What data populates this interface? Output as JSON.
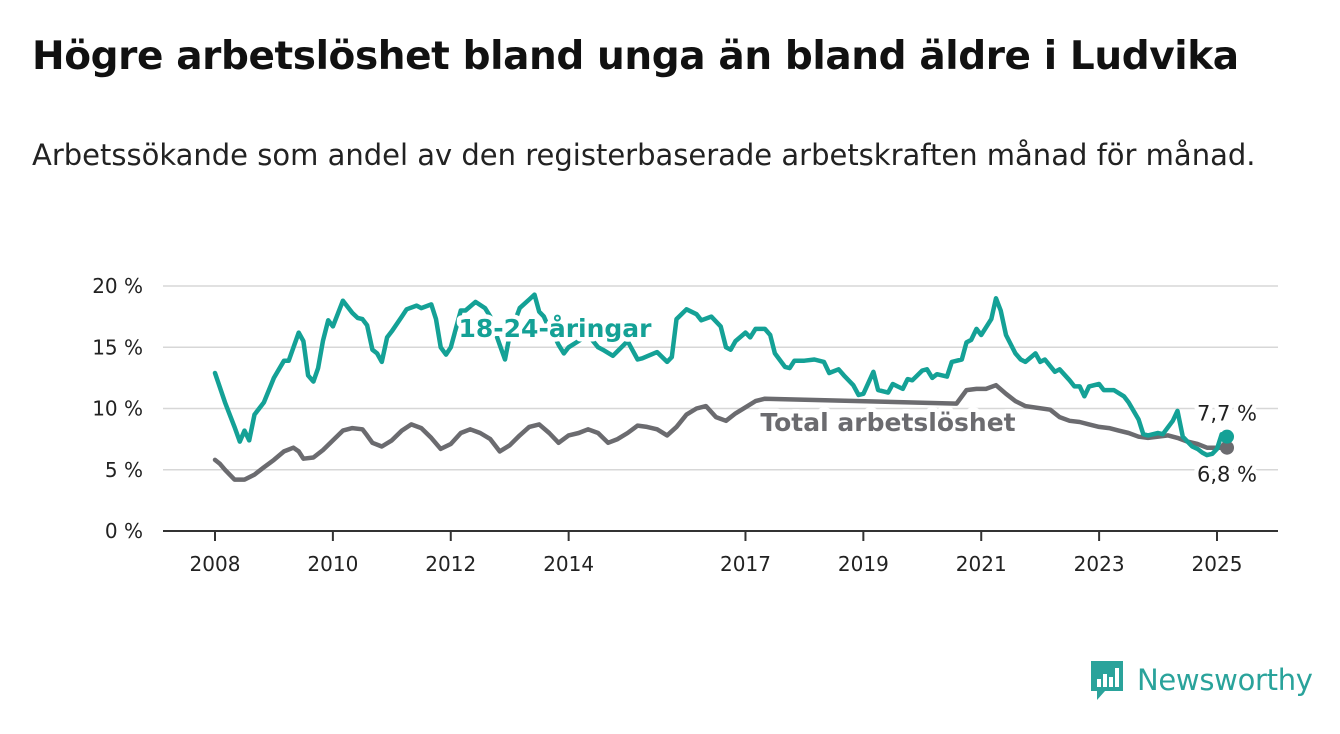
{
  "title": "Högre arbetslöshet bland unga än bland äldre i Ludvika",
  "subtitle": "Arbetssökande som andel av den registerbaserade arbetskraften månad för månad.",
  "brand": {
    "name": "Newsworthy",
    "color": "#2aa39b",
    "icon": "newsworthy-chart-bubble-icon"
  },
  "chart_data": {
    "type": "line",
    "title": "Högre arbetslöshet bland unga än bland äldre i Ludvika",
    "xlabel": "",
    "ylabel": "",
    "ylim": [
      0,
      20
    ],
    "xlim": [
      2008.0,
      2025.25
    ],
    "y_ticks": [
      0,
      5,
      10,
      15,
      20
    ],
    "y_tick_labels": [
      "0 %",
      "5 %",
      "10 %",
      "15 %",
      "20 %"
    ],
    "x_ticks": [
      2008,
      2010,
      2012,
      2014,
      2017,
      2019,
      2021,
      2023,
      2025
    ],
    "x_tick_labels": [
      "2008",
      "2010",
      "2012",
      "2014",
      "2017",
      "2019",
      "2021",
      "2023",
      "2025"
    ],
    "grid": "horizontal",
    "legend": "direct labels",
    "series": [
      {
        "name": "18-24-åringar",
        "color": "#14a196",
        "end_label": "7,7 %",
        "points": [
          [
            2008.0,
            12.9
          ],
          [
            2008.17,
            10.5
          ],
          [
            2008.33,
            8.5
          ],
          [
            2008.42,
            7.3
          ],
          [
            2008.5,
            8.2
          ],
          [
            2008.58,
            7.4
          ],
          [
            2008.67,
            9.5
          ],
          [
            2008.83,
            10.5
          ],
          [
            2009.0,
            12.5
          ],
          [
            2009.17,
            13.9
          ],
          [
            2009.25,
            13.9
          ],
          [
            2009.42,
            16.2
          ],
          [
            2009.5,
            15.5
          ],
          [
            2009.58,
            12.7
          ],
          [
            2009.67,
            12.2
          ],
          [
            2009.75,
            13.3
          ],
          [
            2009.83,
            15.5
          ],
          [
            2009.92,
            17.2
          ],
          [
            2010.0,
            16.7
          ],
          [
            2010.17,
            18.8
          ],
          [
            2010.33,
            17.8
          ],
          [
            2010.42,
            17.4
          ],
          [
            2010.5,
            17.3
          ],
          [
            2010.58,
            16.8
          ],
          [
            2010.67,
            14.8
          ],
          [
            2010.75,
            14.5
          ],
          [
            2010.83,
            13.8
          ],
          [
            2010.92,
            15.8
          ],
          [
            2011.0,
            16.3
          ],
          [
            2011.17,
            17.5
          ],
          [
            2011.25,
            18.1
          ],
          [
            2011.42,
            18.4
          ],
          [
            2011.5,
            18.2
          ],
          [
            2011.67,
            18.5
          ],
          [
            2011.75,
            17.3
          ],
          [
            2011.83,
            15.0
          ],
          [
            2011.92,
            14.4
          ],
          [
            2012.0,
            15.0
          ],
          [
            2012.17,
            18.0
          ],
          [
            2012.25,
            18.0
          ],
          [
            2012.42,
            18.7
          ],
          [
            2012.58,
            18.2
          ],
          [
            2012.67,
            17.5
          ],
          [
            2012.75,
            16.3
          ],
          [
            2012.83,
            15.2
          ],
          [
            2012.92,
            14.0
          ],
          [
            2013.0,
            16.0
          ],
          [
            2013.17,
            18.2
          ],
          [
            2013.33,
            18.9
          ],
          [
            2013.42,
            19.3
          ],
          [
            2013.5,
            17.9
          ],
          [
            2013.58,
            17.5
          ],
          [
            2013.67,
            16.5
          ],
          [
            2013.75,
            16.0
          ],
          [
            2013.83,
            15.2
          ],
          [
            2013.92,
            14.5
          ],
          [
            2014.0,
            15.0
          ],
          [
            2014.33,
            16.0
          ],
          [
            2014.5,
            15.0
          ],
          [
            2014.58,
            14.8
          ],
          [
            2014.75,
            14.3
          ],
          [
            2015.0,
            15.5
          ],
          [
            2015.17,
            14.0
          ],
          [
            2015.25,
            14.1
          ],
          [
            2015.5,
            14.6
          ],
          [
            2015.67,
            13.8
          ],
          [
            2015.75,
            14.2
          ],
          [
            2015.83,
            17.3
          ],
          [
            2016.0,
            18.1
          ],
          [
            2016.17,
            17.7
          ],
          [
            2016.25,
            17.2
          ],
          [
            2016.42,
            17.5
          ],
          [
            2016.58,
            16.7
          ],
          [
            2016.67,
            15.0
          ],
          [
            2016.75,
            14.8
          ],
          [
            2016.83,
            15.5
          ],
          [
            2017.0,
            16.2
          ],
          [
            2017.08,
            15.8
          ],
          [
            2017.17,
            16.5
          ],
          [
            2017.33,
            16.5
          ],
          [
            2017.42,
            16.0
          ],
          [
            2017.5,
            14.5
          ],
          [
            2017.67,
            13.4
          ],
          [
            2017.75,
            13.3
          ],
          [
            2017.83,
            13.9
          ],
          [
            2018.0,
            13.9
          ],
          [
            2018.17,
            14.0
          ],
          [
            2018.33,
            13.8
          ],
          [
            2018.42,
            12.9
          ],
          [
            2018.58,
            13.2
          ],
          [
            2018.67,
            12.7
          ],
          [
            2018.83,
            11.9
          ],
          [
            2018.92,
            11.1
          ],
          [
            2019.0,
            11.2
          ],
          [
            2019.17,
            13.0
          ],
          [
            2019.25,
            11.5
          ],
          [
            2019.42,
            11.3
          ],
          [
            2019.5,
            12.0
          ],
          [
            2019.58,
            11.8
          ],
          [
            2019.67,
            11.6
          ],
          [
            2019.75,
            12.4
          ],
          [
            2019.83,
            12.3
          ],
          [
            2020.0,
            13.1
          ],
          [
            2020.08,
            13.2
          ],
          [
            2020.17,
            12.5
          ],
          [
            2020.25,
            12.8
          ],
          [
            2020.42,
            12.6
          ],
          [
            2020.5,
            13.8
          ],
          [
            2020.67,
            14.0
          ],
          [
            2020.75,
            15.4
          ],
          [
            2020.83,
            15.6
          ],
          [
            2020.92,
            16.5
          ],
          [
            2021.0,
            16.0
          ],
          [
            2021.17,
            17.3
          ],
          [
            2021.25,
            19.0
          ],
          [
            2021.33,
            18.0
          ],
          [
            2021.42,
            16.0
          ],
          [
            2021.58,
            14.5
          ],
          [
            2021.67,
            14.0
          ],
          [
            2021.75,
            13.8
          ],
          [
            2021.92,
            14.5
          ],
          [
            2022.0,
            13.8
          ],
          [
            2022.08,
            14.0
          ],
          [
            2022.25,
            13.0
          ],
          [
            2022.33,
            13.2
          ],
          [
            2022.5,
            12.3
          ],
          [
            2022.58,
            11.8
          ],
          [
            2022.67,
            11.8
          ],
          [
            2022.75,
            11.0
          ],
          [
            2022.83,
            11.8
          ],
          [
            2023.0,
            12.0
          ],
          [
            2023.08,
            11.5
          ],
          [
            2023.25,
            11.5
          ],
          [
            2023.42,
            11.0
          ],
          [
            2023.5,
            10.5
          ],
          [
            2023.67,
            9.1
          ],
          [
            2023.75,
            7.9
          ],
          [
            2023.83,
            7.8
          ],
          [
            2024.0,
            8.0
          ],
          [
            2024.08,
            7.9
          ],
          [
            2024.25,
            9.0
          ],
          [
            2024.33,
            9.8
          ],
          [
            2024.42,
            7.7
          ],
          [
            2024.58,
            6.9
          ],
          [
            2024.67,
            6.7
          ],
          [
            2024.75,
            6.4
          ],
          [
            2024.83,
            6.2
          ],
          [
            2024.92,
            6.3
          ],
          [
            2025.0,
            6.7
          ],
          [
            2025.08,
            7.9
          ],
          [
            2025.17,
            7.7
          ]
        ]
      },
      {
        "name": "Total arbetslöshet",
        "color": "#6b6b6f",
        "end_label": "6,8 %",
        "points": [
          [
            2008.0,
            5.8
          ],
          [
            2008.08,
            5.5
          ],
          [
            2008.17,
            5.0
          ],
          [
            2008.33,
            4.2
          ],
          [
            2008.5,
            4.2
          ],
          [
            2008.67,
            4.6
          ],
          [
            2008.83,
            5.2
          ],
          [
            2009.0,
            5.8
          ],
          [
            2009.17,
            6.5
          ],
          [
            2009.33,
            6.8
          ],
          [
            2009.42,
            6.5
          ],
          [
            2009.5,
            5.9
          ],
          [
            2009.67,
            6.0
          ],
          [
            2009.83,
            6.6
          ],
          [
            2010.0,
            7.4
          ],
          [
            2010.17,
            8.2
          ],
          [
            2010.33,
            8.4
          ],
          [
            2010.5,
            8.3
          ],
          [
            2010.58,
            7.8
          ],
          [
            2010.67,
            7.2
          ],
          [
            2010.83,
            6.9
          ],
          [
            2011.0,
            7.4
          ],
          [
            2011.17,
            8.2
          ],
          [
            2011.33,
            8.7
          ],
          [
            2011.5,
            8.4
          ],
          [
            2011.67,
            7.6
          ],
          [
            2011.83,
            6.7
          ],
          [
            2012.0,
            7.1
          ],
          [
            2012.17,
            8.0
          ],
          [
            2012.33,
            8.3
          ],
          [
            2012.5,
            8.0
          ],
          [
            2012.67,
            7.5
          ],
          [
            2012.83,
            6.5
          ],
          [
            2013.0,
            7.0
          ],
          [
            2013.17,
            7.8
          ],
          [
            2013.33,
            8.5
          ],
          [
            2013.5,
            8.7
          ],
          [
            2013.67,
            8.0
          ],
          [
            2013.83,
            7.2
          ],
          [
            2014.0,
            7.8
          ],
          [
            2014.17,
            8.0
          ],
          [
            2014.33,
            8.3
          ],
          [
            2014.5,
            8.0
          ],
          [
            2014.67,
            7.2
          ],
          [
            2014.83,
            7.5
          ],
          [
            2015.0,
            8.0
          ],
          [
            2015.17,
            8.6
          ],
          [
            2015.33,
            8.5
          ],
          [
            2015.5,
            8.3
          ],
          [
            2015.67,
            7.8
          ],
          [
            2015.83,
            8.5
          ],
          [
            2016.0,
            9.5
          ],
          [
            2016.17,
            10.0
          ],
          [
            2016.33,
            10.2
          ],
          [
            2016.5,
            9.3
          ],
          [
            2016.67,
            9.0
          ],
          [
            2016.83,
            9.6
          ],
          [
            2017.0,
            10.1
          ],
          [
            2017.17,
            10.6
          ],
          [
            2017.33,
            10.8
          ],
          [
            2020.58,
            10.4
          ],
          [
            2020.75,
            11.5
          ],
          [
            2020.92,
            11.6
          ],
          [
            2021.08,
            11.6
          ],
          [
            2021.25,
            11.9
          ],
          [
            2021.42,
            11.2
          ],
          [
            2021.58,
            10.6
          ],
          [
            2021.75,
            10.2
          ],
          [
            2022.17,
            9.9
          ],
          [
            2022.33,
            9.3
          ],
          [
            2022.5,
            9.0
          ],
          [
            2022.67,
            8.9
          ],
          [
            2022.83,
            8.7
          ],
          [
            2023.0,
            8.5
          ],
          [
            2023.17,
            8.4
          ],
          [
            2023.33,
            8.2
          ],
          [
            2023.5,
            8.0
          ],
          [
            2023.67,
            7.7
          ],
          [
            2023.83,
            7.6
          ],
          [
            2024.0,
            7.7
          ],
          [
            2024.17,
            7.8
          ],
          [
            2024.33,
            7.6
          ],
          [
            2024.5,
            7.3
          ],
          [
            2024.67,
            7.1
          ],
          [
            2024.83,
            6.8
          ],
          [
            2025.0,
            6.8
          ],
          [
            2025.17,
            6.8
          ]
        ]
      }
    ]
  }
}
